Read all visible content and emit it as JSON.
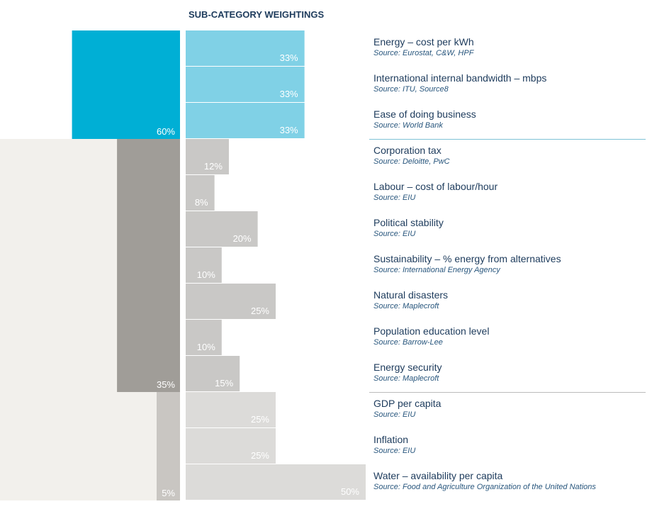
{
  "chart_data": {
    "type": "bar",
    "title": "SUB-CATEGORY WEIGHTINGS",
    "colors": {
      "group_main": [
        "#00afd5",
        "#a09d98",
        "#c9c6c2"
      ],
      "group_sub": [
        "#80d1e6",
        "#c9c8c6",
        "#dcdbd9"
      ],
      "group_bg": [
        "#ffffff",
        "#f2f0ec",
        "#f2f0ec"
      ],
      "title": "#1d3b5c",
      "label": "#1d3b5c",
      "source": "#28567d",
      "separator": "#7fc3d6",
      "separator_2": "#bbbbbb"
    },
    "groups": [
      {
        "weight": 60,
        "weight_label": "60%",
        "items": [
          {
            "name": "Energy – cost per kWh",
            "source": "Source: Eurostat, C&W, HPF",
            "value": 33,
            "value_label": "33%"
          },
          {
            "name": "International internal bandwidth – mbps",
            "source": "Source: ITU, Source8",
            "value": 33,
            "value_label": "33%"
          },
          {
            "name": "Ease of doing business",
            "source": "Source: World Bank",
            "value": 33,
            "value_label": "33%"
          }
        ]
      },
      {
        "weight": 35,
        "weight_label": "35%",
        "items": [
          {
            "name": "Corporation tax",
            "source": "Source: Deloitte, PwC",
            "value": 12,
            "value_label": "12%"
          },
          {
            "name": "Labour – cost of labour/hour",
            "source": "Source: EIU",
            "value": 8,
            "value_label": "8%"
          },
          {
            "name": "Political stability",
            "source": "Source: EIU",
            "value": 20,
            "value_label": "20%"
          },
          {
            "name": "Sustainability – % energy from alternatives",
            "source": "Source: International Energy Agency",
            "value": 10,
            "value_label": "10%"
          },
          {
            "name": "Natural disasters",
            "source": "Source: Maplecroft",
            "value": 25,
            "value_label": "25%"
          },
          {
            "name": "Population education level",
            "source": "Source: Barrow-Lee",
            "value": 10,
            "value_label": "10%"
          },
          {
            "name": "Energy security",
            "source": "Source: Maplecroft",
            "value": 15,
            "value_label": "15%"
          }
        ]
      },
      {
        "weight": 5,
        "weight_label": "5%",
        "items": [
          {
            "name": "GDP per capita",
            "source": "Source: EIU",
            "value": 25,
            "value_label": "25%"
          },
          {
            "name": "Inflation",
            "source": "Source: EIU",
            "value": 25,
            "value_label": "25%"
          },
          {
            "name": "Water – availability per capita",
            "source": "Source: Food and Agriculture Organization of the United Nations",
            "value": 50,
            "value_label": "50%"
          }
        ]
      }
    ]
  }
}
